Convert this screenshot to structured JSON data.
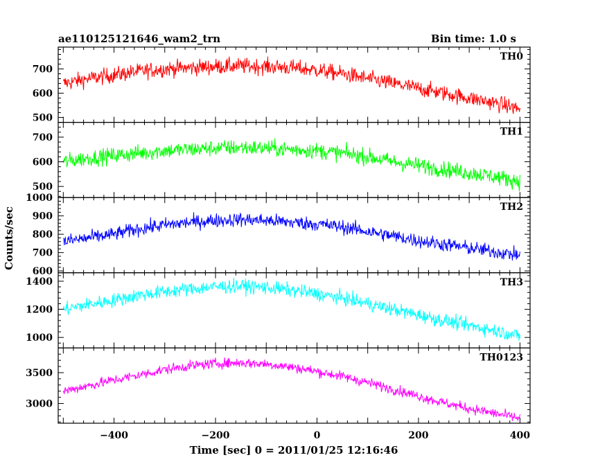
{
  "chart_data": {
    "type": "line",
    "title": "ae110125121646_wam2_trn",
    "subtitle": "Bin time: 1.0 s",
    "xlabel": "Time [sec] 0 = 2011/01/25 12:16:46",
    "ylabel": "Counts/sec",
    "xlim": [
      -510,
      420
    ],
    "x_ticks": [
      -400,
      -200,
      0,
      200,
      400
    ],
    "x": [
      -500,
      -450,
      -400,
      -350,
      -300,
      -250,
      -200,
      -150,
      -100,
      -50,
      0,
      50,
      100,
      150,
      200,
      250,
      300,
      350,
      400
    ],
    "series": [
      {
        "name": "TH0",
        "color": "#ff0000",
        "ylim": [
          480,
          790
        ],
        "y_ticks": [
          500,
          600,
          700
        ],
        "values": [
          640,
          660,
          675,
          690,
          700,
          705,
          710,
          712,
          710,
          705,
          695,
          680,
          660,
          640,
          620,
          600,
          580,
          560,
          535
        ],
        "noise": 30
      },
      {
        "name": "TH1",
        "color": "#00ff00",
        "ylim": [
          455,
          760
        ],
        "y_ticks": [
          500,
          600,
          700
        ],
        "values": [
          600,
          615,
          625,
          635,
          645,
          650,
          655,
          658,
          655,
          650,
          645,
          635,
          620,
          600,
          585,
          570,
          555,
          540,
          520
        ],
        "noise": 30
      },
      {
        "name": "TH2",
        "color": "#0000ff",
        "ylim": [
          590,
          1000
        ],
        "y_ticks": [
          600,
          700,
          800,
          900,
          1000
        ],
        "values": [
          760,
          780,
          800,
          830,
          850,
          865,
          875,
          880,
          875,
          865,
          855,
          840,
          815,
          790,
          765,
          745,
          725,
          705,
          685
        ],
        "noise": 35
      },
      {
        "name": "TH3",
        "color": "#00ffff",
        "ylim": [
          925,
          1460
        ],
        "y_ticks": [
          1000,
          1200,
          1400
        ],
        "values": [
          1200,
          1235,
          1265,
          1300,
          1325,
          1345,
          1360,
          1365,
          1355,
          1335,
          1310,
          1280,
          1240,
          1200,
          1160,
          1120,
          1085,
          1050,
          1010
        ],
        "noise": 45
      },
      {
        "name": "TH0123",
        "color": "#ff00ff",
        "ylim": [
          2680,
          3900
        ],
        "y_ticks": [
          3000,
          3500
        ],
        "values": [
          3200,
          3290,
          3380,
          3460,
          3550,
          3610,
          3650,
          3660,
          3640,
          3590,
          3520,
          3440,
          3340,
          3230,
          3120,
          3010,
          2920,
          2840,
          2760
        ],
        "noise": 75
      }
    ]
  }
}
